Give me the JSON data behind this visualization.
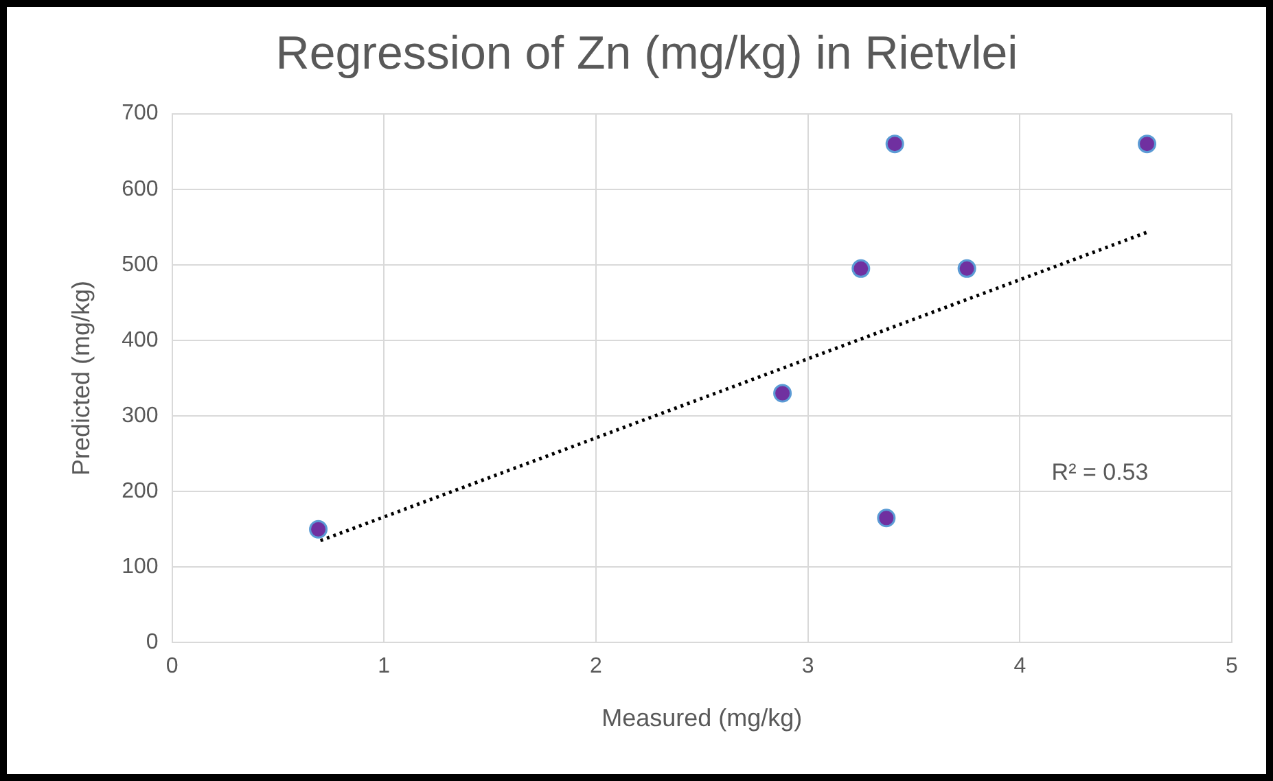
{
  "chart_data": {
    "type": "scatter",
    "title": "Regression of Zn (mg/kg) in Rietvlei",
    "xlabel": "Measured (mg/kg)",
    "ylabel": "Predicted (mg/kg)",
    "series": [
      {
        "color": "#7030a0",
        "x": [
          0.69,
          2.88,
          3.25,
          3.41,
          3.37,
          3.75,
          4.6
        ],
        "values": [
          150,
          330,
          495,
          660,
          165,
          495,
          660
        ]
      },
      {
        "type": "line",
        "color": "#000000",
        "line_style": "dotted",
        "marker": "none",
        "x": [
          0.7,
          4.6
        ],
        "values": [
          135,
          543
        ]
      }
    ],
    "xlim": [
      0,
      5
    ],
    "xticks": [
      0,
      1,
      2,
      3,
      4,
      5
    ],
    "ylim": [
      0,
      700
    ],
    "yticks": [
      0,
      100,
      200,
      300,
      400,
      500,
      600,
      700
    ],
    "grid": true,
    "legend": false,
    "marker": "circle",
    "annotations": [
      "R² = 0.53"
    ]
  }
}
